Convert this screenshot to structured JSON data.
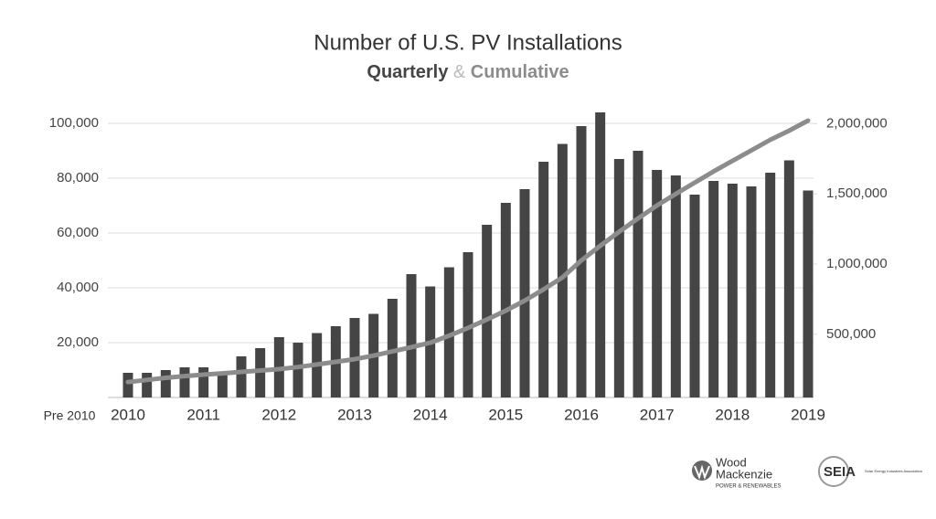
{
  "chart_data": {
    "type": "bar_line",
    "title": "Number of U.S. PV Installations",
    "subtitle_joiner": "&",
    "categories": [
      "Pre 2010",
      "2010",
      null,
      null,
      null,
      "2011",
      null,
      null,
      null,
      "2012",
      null,
      null,
      null,
      "2013",
      null,
      null,
      null,
      "2014",
      null,
      null,
      null,
      "2015",
      null,
      null,
      null,
      "2016",
      null,
      null,
      null,
      "2017",
      null,
      null,
      null,
      "2018",
      null,
      null,
      null,
      "2019"
    ],
    "series": [
      {
        "name": "Quarterly",
        "color": "#454545",
        "values": [
          null,
          9000,
          9000,
          10000,
          11000,
          11000,
          9500,
          15000,
          18000,
          22000,
          20000,
          23500,
          26000,
          29000,
          30500,
          36000,
          45000,
          40500,
          47500,
          53000,
          63000,
          71000,
          76000,
          86000,
          92500,
          99000,
          104000,
          87000,
          90000,
          83000,
          81000,
          74000,
          79000,
          78000,
          77000,
          82000,
          86500,
          75500
        ]
      },
      {
        "name": "Cumulative",
        "color": "#8c8c8c",
        "axis": "y2",
        "values": [
          null,
          160000,
          175000,
          190000,
          202000,
          213000,
          222000,
          232000,
          242000,
          252000,
          267000,
          285000,
          304000,
          323000,
          348000,
          378000,
          408000,
          440000,
          490000,
          545000,
          605000,
          668000,
          740000,
          820000,
          905000,
          1026000,
          1130000,
          1230000,
          1325000,
          1417000,
          1500000,
          1580000,
          1660000,
          1735000,
          1810000,
          1885000,
          1950000,
          2022000
        ]
      }
    ],
    "ylim": [
      0,
      105000
    ],
    "yticks": [
      {
        "value": 20000,
        "label": "20,000"
      },
      {
        "value": 40000,
        "label": "40,000"
      },
      {
        "value": 60000,
        "label": "60,000"
      },
      {
        "value": 80000,
        "label": "80,000"
      },
      {
        "value": 100000,
        "label": "100,000"
      }
    ],
    "y2lim": [
      50000,
      2100000
    ],
    "y2ticks": [
      {
        "value": 500000,
        "label": "500,000"
      },
      {
        "value": 1000000,
        "label": "1,000,000"
      },
      {
        "value": 1500000,
        "label": "1,500,000"
      },
      {
        "value": 2000000,
        "label": "2,000,000"
      }
    ],
    "grid": true,
    "logos": [
      "Wood",
      "Mackenzie",
      "POWER & RENEWABLES",
      "SEIA",
      "Solar Energy Industries Association"
    ]
  }
}
